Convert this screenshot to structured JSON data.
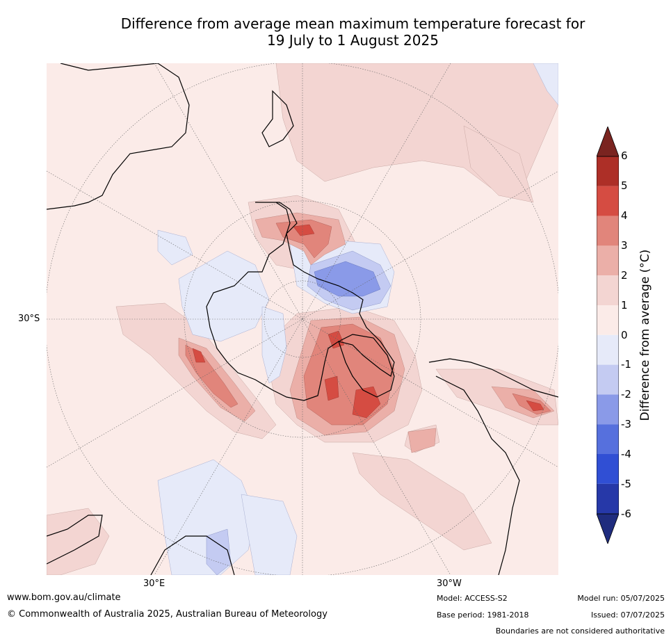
{
  "title": {
    "line1": "Difference from average mean maximum temperature forecast for",
    "line2": "19 July to 1 August 2025"
  },
  "map": {
    "projection": "south polar stereographic",
    "graticule_labels": {
      "lat_left": "30°S",
      "lon_bottom_left": "30°E",
      "lon_bottom_right": "30°W"
    },
    "colors": {
      "background_anomaly": "#fbebe8",
      "warm_1_2": "#f3d5d2",
      "warm_2_3": "#ebafa8",
      "warm_3_4": "#e1857b",
      "warm_4_5": "#d54c42",
      "cool_0_1": "#e6eaf9",
      "cool_1_2": "#c4cbf2",
      "cool_2_3": "#8a9ae8"
    }
  },
  "colorbar": {
    "label": "Difference from average (°C)",
    "ticks": [
      "6",
      "5",
      "4",
      "3",
      "2",
      "1",
      "0",
      "-1",
      "-2",
      "-3",
      "-4",
      "-5",
      "-6"
    ],
    "colors": [
      "#7a2420",
      "#ad2f27",
      "#d54c42",
      "#e1857b",
      "#ebafa8",
      "#f3d5d2",
      "#fbebe8",
      "#e6eaf9",
      "#c4cbf2",
      "#8a9ae8",
      "#5670dd",
      "#304fd4",
      "#2638a8",
      "#1f2c7e"
    ]
  },
  "footer": {
    "url": "www.bom.gov.au/climate",
    "copyright": "© Commonwealth of Australia 2025, Australian Bureau of Meteorology",
    "model": "Model: ACCESS-S2",
    "base_period": "Base period: 1981-2018",
    "model_run": "Model run: 05/07/2025",
    "issued": "Issued: 07/07/2025",
    "disclaimer": "Boundaries are not considered authoritative"
  }
}
